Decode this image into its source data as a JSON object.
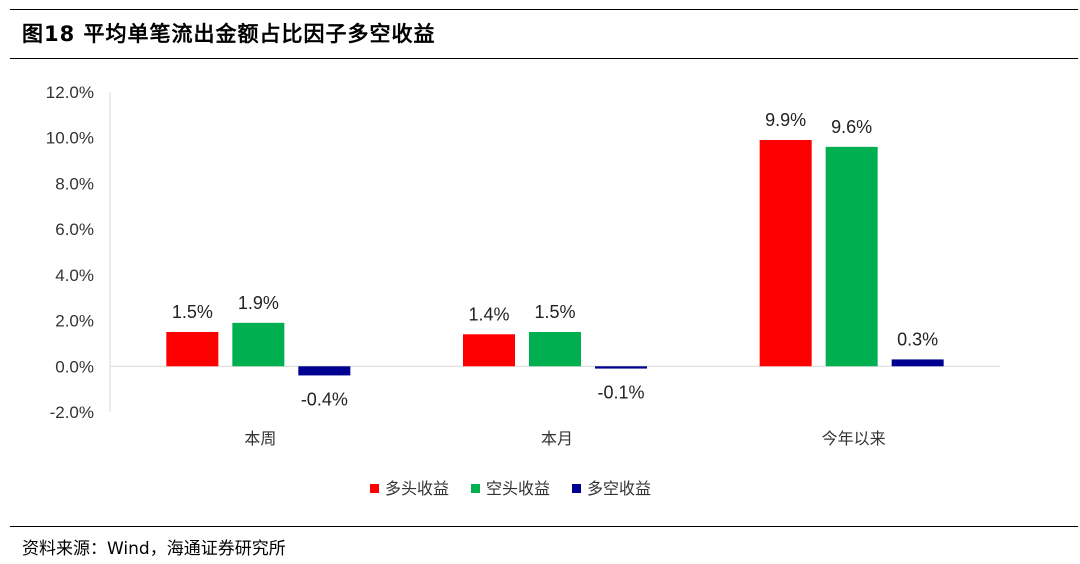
{
  "figure_title": "图18 平均单笔流出金额占比因子多空收益",
  "source_note": "资料来源：Wind，海通证券研究所",
  "chart_data": {
    "type": "bar",
    "categories": [
      "本周",
      "本月",
      "今年以来"
    ],
    "series": [
      {
        "name": "多头收益",
        "values": [
          1.5,
          1.4,
          9.9
        ],
        "labels": [
          "1.5%",
          "1.4%",
          "9.9%"
        ],
        "color": "#ff0000"
      },
      {
        "name": "空头收益",
        "values": [
          1.9,
          1.5,
          9.6
        ],
        "labels": [
          "1.9%",
          "1.5%",
          "9.6%"
        ],
        "color": "#00b050"
      },
      {
        "name": "多空收益",
        "values": [
          -0.4,
          -0.1,
          0.3
        ],
        "labels": [
          "-0.4%",
          "-0.1%",
          "0.3%"
        ],
        "color": "#000090"
      }
    ],
    "y_ticks": [
      "-2.0%",
      "0.0%",
      "2.0%",
      "4.0%",
      "6.0%",
      "8.0%",
      "10.0%",
      "12.0%"
    ],
    "ylim": [
      -2,
      12
    ],
    "y_step": 2,
    "grid": false,
    "legend_position": "bottom-center"
  }
}
